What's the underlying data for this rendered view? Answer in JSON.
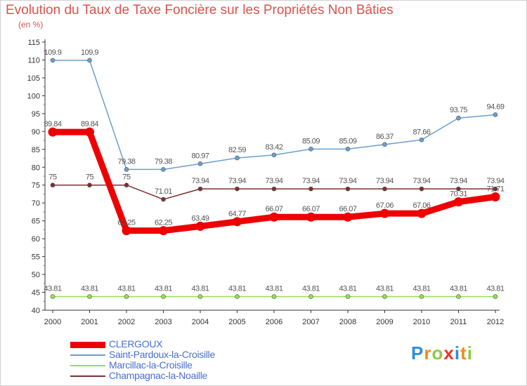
{
  "chart_data": {
    "type": "line",
    "title": "Evolution du Taux de Taxe Foncière sur les Propriétés Non Bâties",
    "subtitle": "(en %)",
    "x": [
      "2000",
      "2001",
      "2002",
      "2003",
      "2004",
      "2005",
      "2006",
      "2007",
      "2008",
      "2009",
      "2010",
      "2011",
      "2012"
    ],
    "ylim": [
      40,
      115
    ],
    "yticks": [
      40,
      45,
      50,
      55,
      60,
      65,
      70,
      75,
      80,
      85,
      90,
      95,
      100,
      105,
      110,
      115
    ],
    "grid": false,
    "series": [
      {
        "name": "CLERGOUX",
        "color": "#ee0000",
        "values": [
          89.84,
          89.84,
          62.25,
          62.25,
          63.49,
          64.77,
          66.07,
          66.07,
          66.07,
          67.06,
          67.06,
          70.31,
          71.71
        ],
        "labels": [
          "89.84",
          "89.84",
          "62.25",
          "62.25",
          "63.49",
          "64.77",
          "66.07",
          "66.07",
          "66.07",
          "67.06",
          "67.06",
          "70.31",
          "71.71"
        ]
      },
      {
        "name": "Saint-Pardoux-la-Croisille",
        "color": "#6a9fcf",
        "values": [
          109.9,
          109.9,
          79.38,
          79.38,
          80.97,
          82.59,
          83.42,
          85.09,
          85.09,
          86.37,
          87.66,
          93.75,
          94.69
        ],
        "labels": [
          "109.9",
          "109.9",
          "79.38",
          "79.38",
          "80.97",
          "82.59",
          "83.42",
          "85.09",
          "85.09",
          "86.37",
          "87.66",
          "93.75",
          "94.69"
        ]
      },
      {
        "name": "Marcillac-la-Croisille",
        "color": "#99dd55",
        "values": [
          43.81,
          43.81,
          43.81,
          43.81,
          43.81,
          43.81,
          43.81,
          43.81,
          43.81,
          43.81,
          43.81,
          43.81,
          43.81
        ],
        "labels": [
          "43.81",
          "43.81",
          "43.81",
          "43.81",
          "43.81",
          "43.81",
          "43.81",
          "43.81",
          "43.81",
          "43.81",
          "43.81",
          "43.81",
          "43.81"
        ]
      },
      {
        "name": "Champagnac-la-Noaille",
        "color": "#7a3030",
        "values": [
          75,
          75,
          75,
          71.01,
          73.94,
          73.94,
          73.94,
          73.94,
          73.94,
          73.94,
          73.94,
          73.94,
          73.94
        ],
        "labels": [
          "75",
          "75",
          "75",
          "71.01",
          "73.94",
          "73.94",
          "73.94",
          "73.94",
          "73.94",
          "73.94",
          "73.94",
          "73.94",
          "73.94"
        ]
      }
    ]
  },
  "logo": {
    "letters": [
      "P",
      "r",
      "o",
      "x",
      "i",
      "t",
      "i"
    ]
  }
}
